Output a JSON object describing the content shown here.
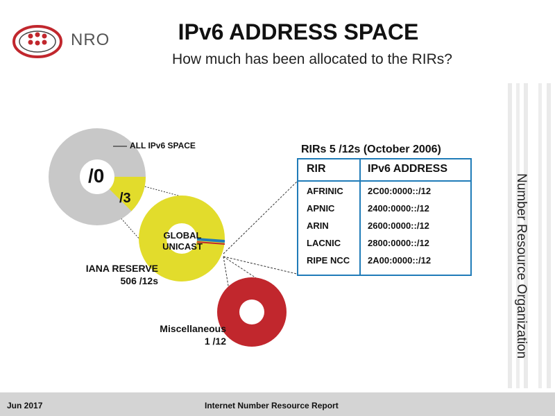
{
  "logo": {
    "text": "NRO"
  },
  "header": {
    "title": "IPv6 ADDRESS SPACE",
    "subtitle": "How much has been allocated to the RIRs?"
  },
  "diagram": {
    "all_space": {
      "label": "ALL IPv6 SPACE",
      "prefix": "/0",
      "color": "#c8c8c8"
    },
    "slice": {
      "prefix": "/3",
      "color": "#e2dc2c"
    },
    "global_unicast": {
      "label_line1": "GLOBAL",
      "label_line2": "UNICAST",
      "color": "#e2dc2c"
    },
    "iana_reserve": {
      "line1": "IANA RESERVE",
      "line2": "506 /12s"
    },
    "misc": {
      "line1": "Miscellaneous",
      "line2": "1 /12",
      "color": "#c1272d"
    },
    "rir_slice_color": "#1f7bb8"
  },
  "rir_table": {
    "caption": "RIRs 5 /12s (October 2006)",
    "headers": [
      "RIR",
      "IPv6 ADDRESS"
    ],
    "rows": [
      [
        "AFRINIC",
        "2C00:0000::/12"
      ],
      [
        "APNIC",
        "2400:0000::/12"
      ],
      [
        "ARIN",
        "2600:0000::/12"
      ],
      [
        "LACNIC",
        "2800:0000::/12"
      ],
      [
        "RIPE NCC",
        "2A00:0000::/12"
      ]
    ],
    "border_color": "#1f7bb8"
  },
  "sidebar": {
    "text": "Number Resource Organization"
  },
  "footer": {
    "date": "Jun 2017",
    "center": "Internet Number Resource Report"
  }
}
